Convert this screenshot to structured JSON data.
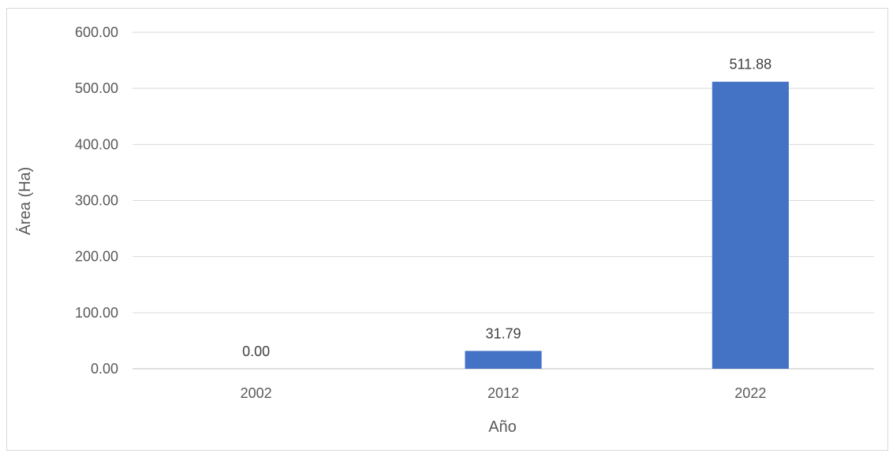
{
  "chart_data": {
    "type": "bar",
    "categories": [
      "2002",
      "2012",
      "2022"
    ],
    "values": [
      0.0,
      31.79,
      511.88
    ],
    "data_labels": [
      "0.00",
      "31.79",
      "511.88"
    ],
    "title": "",
    "xlabel": "Año",
    "ylabel": "Área (Ha)",
    "ylim": [
      0,
      600
    ],
    "yticks": [
      0,
      100,
      200,
      300,
      400,
      500,
      600
    ],
    "ytick_labels": [
      "0.00",
      "100.00",
      "200.00",
      "300.00",
      "400.00",
      "500.00",
      "600.00"
    ],
    "grid": true,
    "legend": "none",
    "colors": {
      "bar": "#4472c4",
      "grid": "#d9d9d9",
      "axis": "#bfbfbf"
    }
  }
}
